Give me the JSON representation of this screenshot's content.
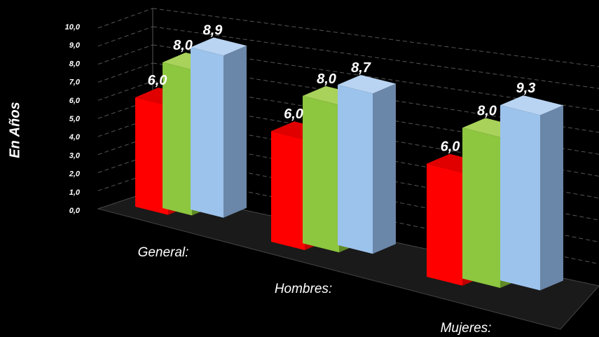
{
  "chart_data": {
    "type": "bar",
    "title": "",
    "ylabel": "En Años",
    "xlabel": "",
    "ylim": [
      0,
      10
    ],
    "yticks": [
      "0,0",
      "1,0",
      "2,0",
      "3,0",
      "4,0",
      "5,0",
      "6,0",
      "7,0",
      "8,0",
      "9,0",
      "10,0"
    ],
    "categories": [
      "General:",
      "Hombres:",
      "Mujeres:"
    ],
    "series": [
      {
        "color": "#ff0000",
        "side": "#c00000",
        "top": "#e00000",
        "values": [
          6.0,
          6.0,
          6.0
        ],
        "labels": [
          "6,0",
          "6,0",
          "6,0"
        ]
      },
      {
        "color": "#8dc63f",
        "side": "#5f8a25",
        "top": "#a8d25a",
        "values": [
          8.0,
          8.0,
          8.0
        ],
        "labels": [
          "8,0",
          "8,0",
          "8,0"
        ]
      },
      {
        "color": "#9cc3ec",
        "side": "#6a86a8",
        "top": "#b9d4f2",
        "values": [
          8.9,
          8.7,
          9.3
        ],
        "labels": [
          "8,9",
          "8,7",
          "9,3"
        ]
      }
    ],
    "grid": true,
    "legend": "none"
  }
}
